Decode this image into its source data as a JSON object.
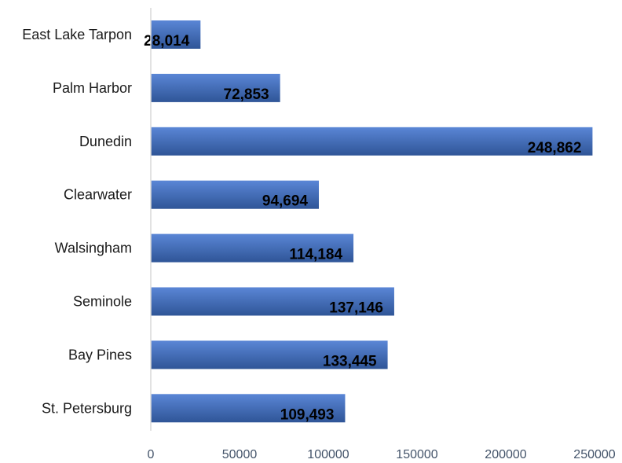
{
  "chart_data": {
    "type": "bar",
    "orientation": "horizontal",
    "categories": [
      "East Lake Tarpon",
      "Palm Harbor",
      "Dunedin",
      "Clearwater",
      "Walsingham",
      "Seminole",
      "Bay Pines",
      "St. Petersburg"
    ],
    "values": [
      28014,
      72853,
      248862,
      94694,
      114184,
      137146,
      133445,
      109493
    ],
    "data_labels": [
      "28,014",
      "72,853",
      "248,862",
      "94,694",
      "114,184",
      "137,146",
      "133,445",
      "109,493"
    ],
    "x_ticks": [
      "0",
      "50000",
      "100000",
      "150000",
      "200000",
      "250000"
    ],
    "xlim": [
      0,
      250000
    ],
    "grid": false,
    "colors": {
      "bar": "#4472c4",
      "bar_light": "#5a86d6",
      "bar_dark": "#2f5597",
      "axis": "#d9d9d9"
    }
  }
}
